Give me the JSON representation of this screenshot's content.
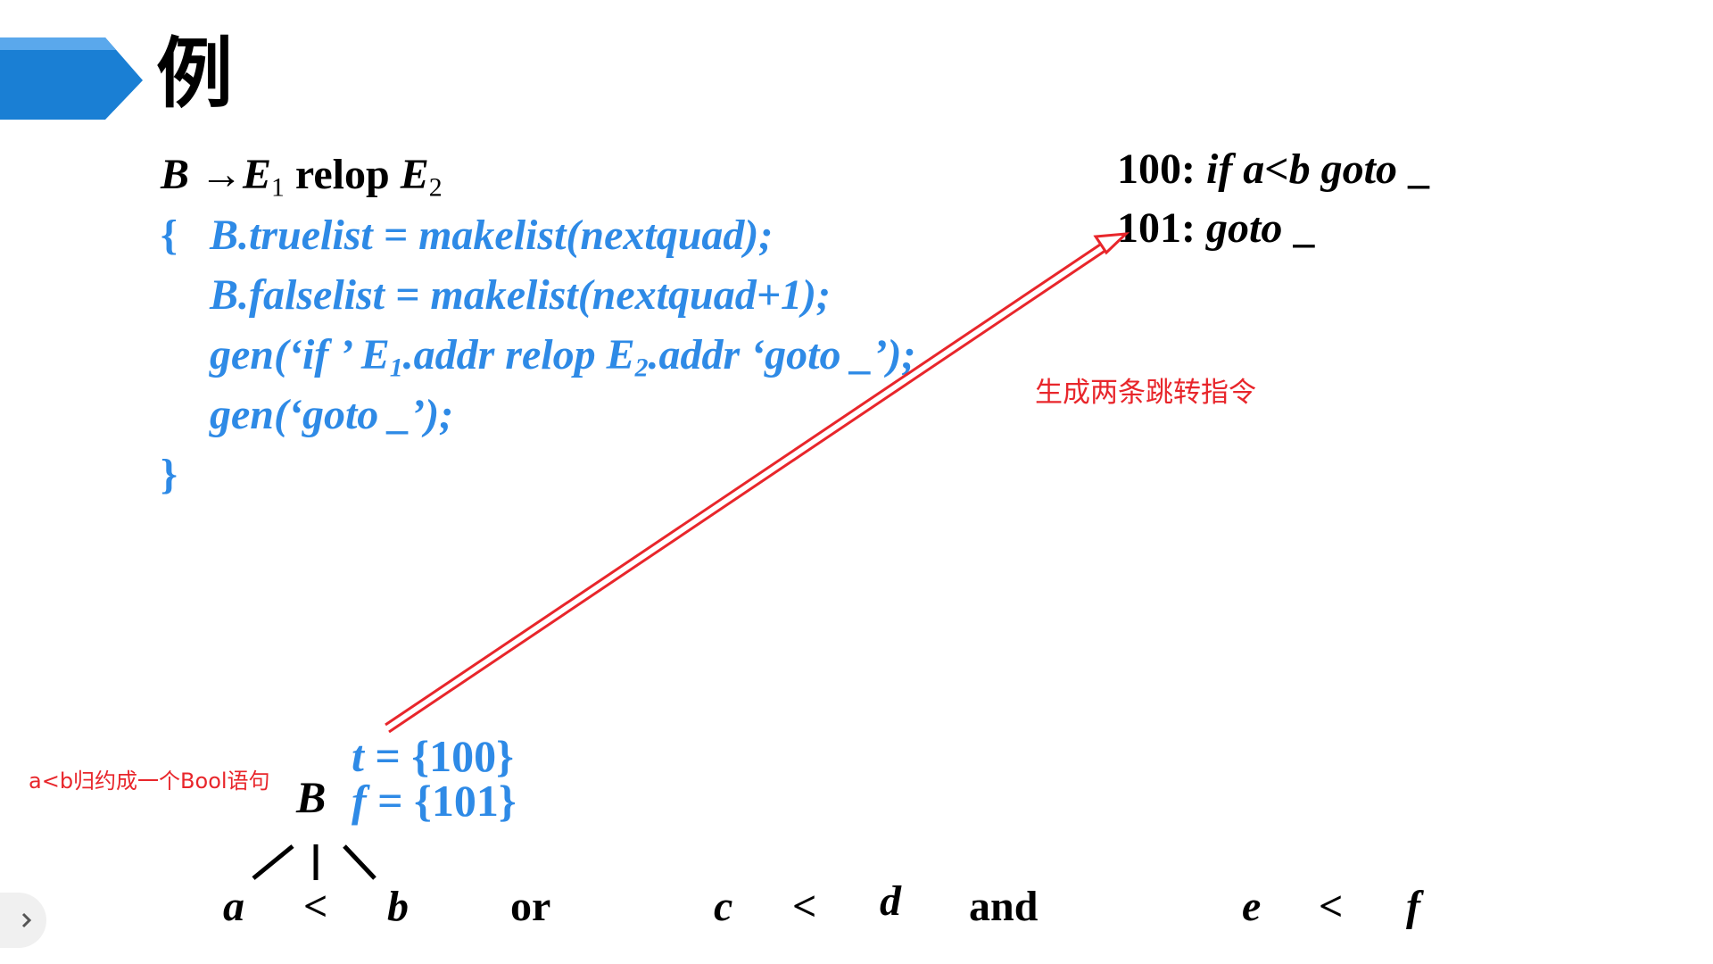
{
  "title": "例",
  "production": {
    "lhs": "B",
    "arrow": "→",
    "e": "E",
    "sub1": "1",
    "relop": "relop",
    "sub2": "2"
  },
  "action": {
    "open_brace": "{",
    "line1": "B.truelist = makelist(nextquad);",
    "line2": "B.falselist = makelist(nextquad+1);",
    "line3_a": "gen(‘if ’ E",
    "line3_sub1": "1",
    "line3_b": ".addr relop E",
    "line3_sub2": "2",
    "line3_c": ".addr ‘goto _’);",
    "line4": "gen(‘goto _’);",
    "close_brace": "}"
  },
  "quads": [
    {
      "num": "100:",
      "text": "if a<b goto",
      "target": "_"
    },
    {
      "num": "101:",
      "text": "goto",
      "target": "_"
    }
  ],
  "notes": {
    "generate": "生成两条跳转指令",
    "reduce": "a<b归约成一个Bool语句"
  },
  "node": {
    "symbol": "B",
    "t_label": "t",
    "t_value": "= {100}",
    "f_label": "f",
    "f_value": "= {101}"
  },
  "input_tokens": [
    "a",
    "<",
    "b",
    "or",
    "c",
    "<",
    "d",
    "and",
    "e",
    "<",
    "f"
  ],
  "colors": {
    "accent_blue": "#2e8ae6",
    "header_blue": "#1a7fd4",
    "annotation_red": "#e8262b"
  }
}
